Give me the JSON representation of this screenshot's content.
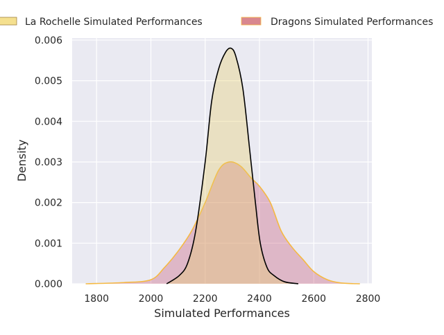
{
  "chart_data": {
    "type": "area",
    "title": "",
    "xlabel": "Simulated Performances",
    "ylabel": "Density",
    "xlim": [
      1710,
      2814
    ],
    "ylim": [
      0,
      0.00605
    ],
    "xticks": [
      1800,
      2000,
      2200,
      2400,
      2600,
      2800
    ],
    "xtick_labels": [
      "1800",
      "2000",
      "2200",
      "2400",
      "2600",
      "2800"
    ],
    "yticks": [
      0,
      0.001,
      0.002,
      0.003,
      0.004,
      0.005,
      0.006
    ],
    "ytick_labels": [
      "0.000",
      "0.001",
      "0.002",
      "0.003",
      "0.004",
      "0.005",
      "0.006"
    ],
    "grid": true,
    "legend_position": "top",
    "series": [
      {
        "name": "Dragons Simulated Performances",
        "fill": "#c85a78",
        "line": "#f5b942",
        "legend_color": "#d9878f",
        "x": [
          1760,
          1900,
          2000,
          2050,
          2100,
          2150,
          2200,
          2250,
          2290,
          2330,
          2370,
          2400,
          2440,
          2480,
          2520,
          2560,
          2600,
          2650,
          2700,
          2770
        ],
        "y": [
          0,
          3e-05,
          0.0001,
          0.0004,
          0.0008,
          0.0013,
          0.002,
          0.0028,
          0.003,
          0.0029,
          0.0026,
          0.0024,
          0.002,
          0.0013,
          0.0009,
          0.0006,
          0.0003,
          0.0001,
          2e-05,
          0
        ]
      },
      {
        "name": "La Rochelle Simulated Performances",
        "fill": "#e8cf6a",
        "line": "#000000",
        "legend_color": "#f5e08f",
        "x": [
          2058,
          2104,
          2135,
          2165,
          2200,
          2224,
          2250,
          2275,
          2295,
          2313,
          2339,
          2364,
          2385,
          2403,
          2428,
          2454,
          2492,
          2543
        ],
        "y": [
          0,
          0.0002,
          0.0005,
          0.0013,
          0.003,
          0.0045,
          0.0053,
          0.0057,
          0.0058,
          0.0056,
          0.0048,
          0.0033,
          0.002,
          0.001,
          0.0004,
          0.0002,
          5e-05,
          0
        ]
      }
    ]
  }
}
